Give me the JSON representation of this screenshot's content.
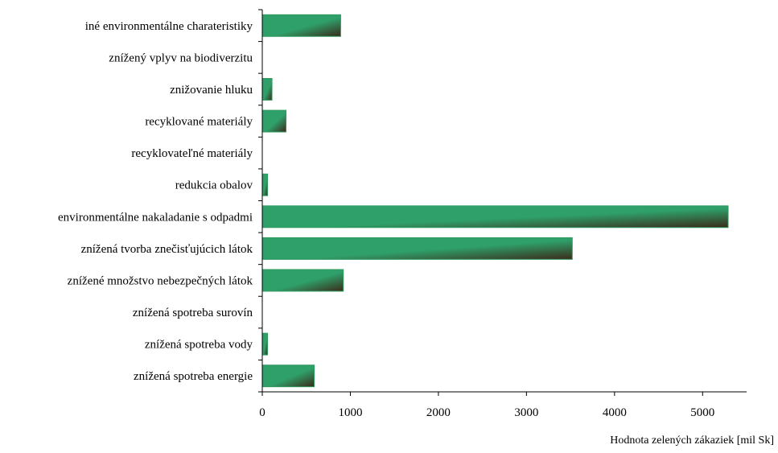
{
  "chart_data": {
    "type": "bar",
    "orientation": "horizontal",
    "title": "",
    "xlabel": "Hodnota zelených zákaziek [mil Sk]",
    "ylabel": "",
    "xlim": [
      0,
      5500
    ],
    "xticks": [
      0,
      1000,
      2000,
      3000,
      4000,
      5000
    ],
    "grid": false,
    "legend": "none",
    "categories": [
      "iné environmentálne charateristiky",
      "znížený vplyv na biodiverzitu",
      "znižovanie hluku",
      "recyklované materiály",
      "recyklovateľné materiály",
      "redukcia obalov",
      "environmentálne nakaladanie s odpadmi",
      "znížená tvorba znečisťujúcich látok",
      "znížené množstvo nebezpečných látok",
      "znížená spotreba surovín",
      "znížená spotreba vody",
      "znížená spotreba energie"
    ],
    "values": [
      890,
      0,
      110,
      270,
      0,
      60,
      5290,
      3520,
      920,
      0,
      60,
      590
    ],
    "colors": {
      "bar_light": "#2fa06a",
      "bar_dark": "#3a2a1a",
      "bar_edge": "#2e9a5e",
      "axis": "#000000"
    }
  }
}
